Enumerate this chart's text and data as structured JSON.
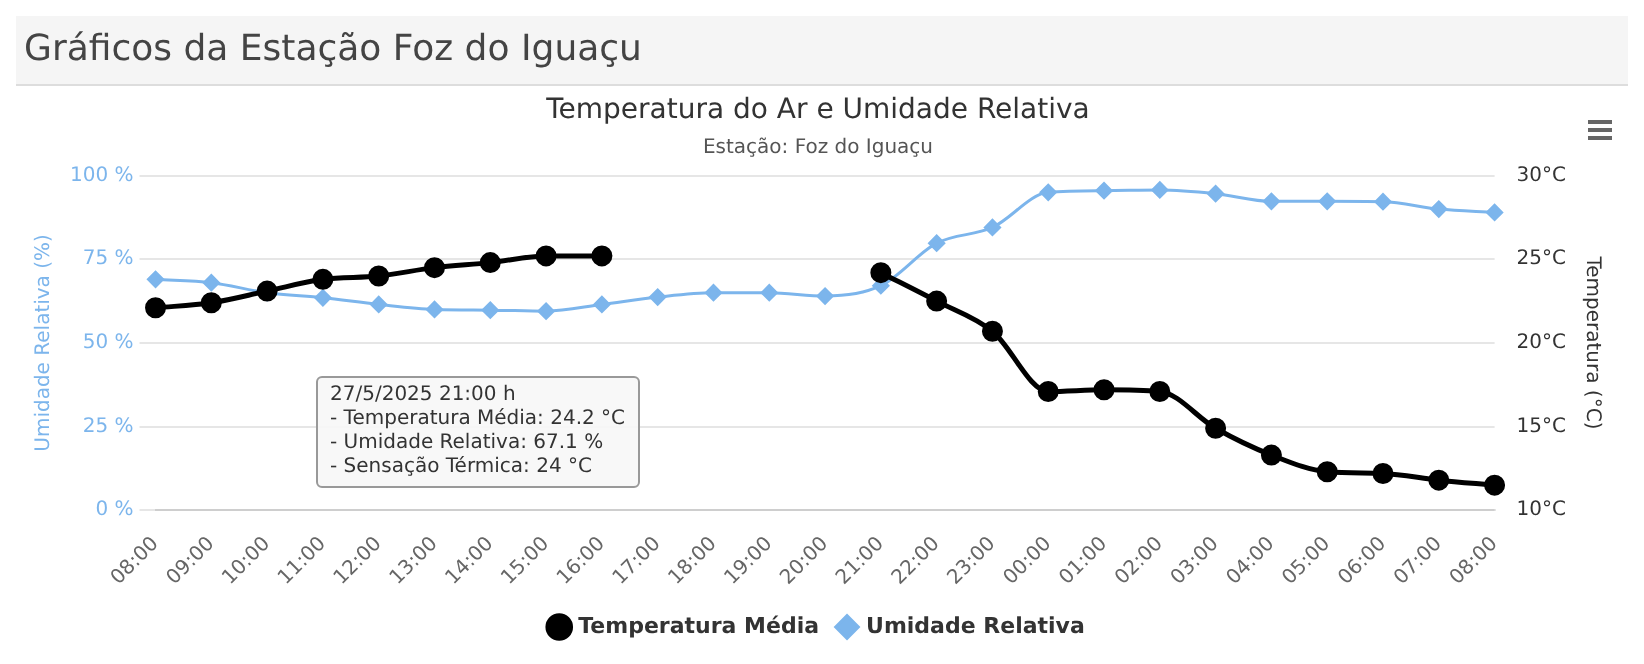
{
  "chart_data": {
    "type": "line",
    "title": "Temperatura do Ar e Umidade Relativa",
    "subtitle": "Estação: Foz do Iguaçu",
    "annotations": [
      "Gráficos da Estação Foz do Iguaçu",
      "27/5/2025 21:00 h",
      "- Temperatura Média: 24.2 °C",
      "- Umidade Relativa: 67.1 %",
      "- Sensação Térmica: 24 °C"
    ],
    "categories": [
      "08:00",
      "09:00",
      "10:00",
      "11:00",
      "12:00",
      "13:00",
      "14:00",
      "15:00",
      "16:00",
      "17:00",
      "18:00",
      "19:00",
      "20:00",
      "21:00",
      "22:00",
      "23:00",
      "00:00",
      "01:00",
      "02:00",
      "03:00",
      "04:00",
      "05:00",
      "06:00",
      "07:00",
      "08:00"
    ],
    "ylabel": "Umidade Relativa (%)",
    "y2label": "Temperatura (°C)",
    "ylim": [
      0,
      100
    ],
    "yticks": [
      {
        "value": 0,
        "label": "0 %"
      },
      {
        "value": 25,
        "label": "25 %"
      },
      {
        "value": 50,
        "label": "50 %"
      },
      {
        "value": 75,
        "label": "75 %"
      },
      {
        "value": 100,
        "label": "100 %"
      }
    ],
    "y2lim": [
      10,
      30
    ],
    "y2ticks": [
      {
        "value": 10,
        "label": "10°C"
      },
      {
        "value": 15,
        "label": "15°C"
      },
      {
        "value": 20,
        "label": "20°C"
      },
      {
        "value": 25,
        "label": "25°C"
      },
      {
        "value": 30,
        "label": "30°C"
      }
    ],
    "grid": "y",
    "legend": "bottom",
    "marker": "circle",
    "series": [
      {
        "name": "Temperatura Média",
        "color": "#000000",
        "axis": "y2",
        "values": [
          22.1,
          22.4,
          23.1,
          23.8,
          24.0,
          24.5,
          24.8,
          25.2,
          25.2,
          null,
          null,
          null,
          null,
          24.2,
          22.5,
          20.7,
          17.1,
          17.2,
          17.1,
          14.9,
          13.3,
          12.3,
          12.2,
          11.8,
          11.5
        ]
      },
      {
        "name": "Umidade Relativa",
        "color": "#7cb5ec",
        "marker": "diamond",
        "values": [
          69,
          68,
          65,
          63.5,
          61.5,
          60,
          59.8,
          59.5,
          61.5,
          63.7,
          65,
          65,
          64,
          67.1,
          79.8,
          84.5,
          95,
          95.5,
          95.7,
          94.6,
          92.3,
          92.3,
          92.2,
          90,
          89
        ]
      }
    ]
  }
}
